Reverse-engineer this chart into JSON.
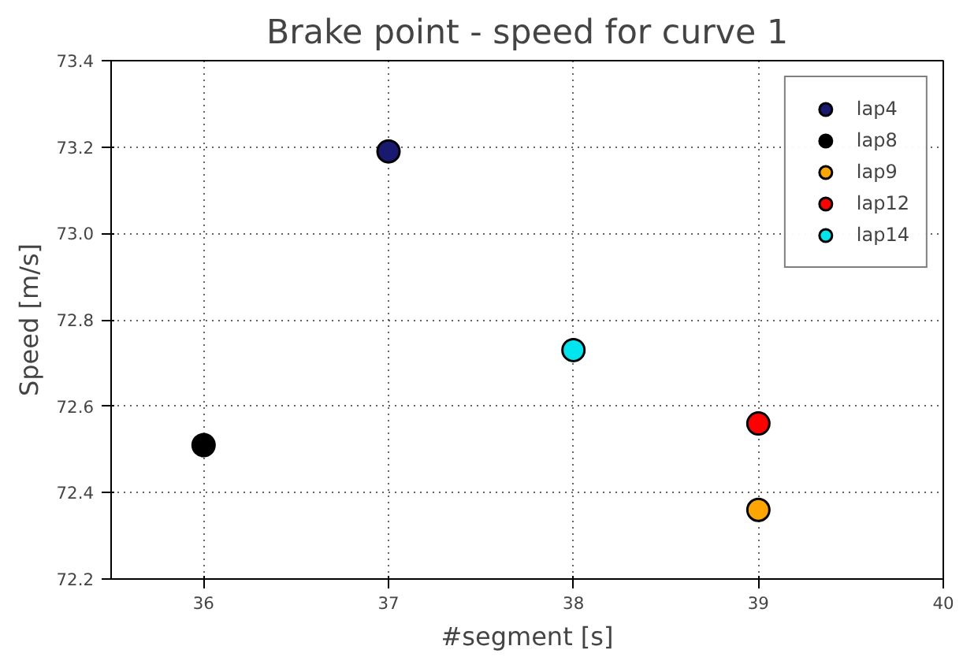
{
  "chart_data": {
    "type": "scatter",
    "title": "Brake point - speed for curve 1",
    "xlabel": "#segment [s]",
    "ylabel": "Speed [m/s]",
    "xlim": [
      35.5,
      40
    ],
    "xticks": [
      36,
      37,
      38,
      39,
      40
    ],
    "ylim": [
      72.2,
      73.4
    ],
    "yticks": [
      {
        "value": 72.2,
        "label": "72.2"
      },
      {
        "value": 72.4,
        "label": "72.4"
      },
      {
        "value": 72.6,
        "label": "72.6"
      },
      {
        "value": 72.8,
        "label": "72.8"
      },
      {
        "value": 73.0,
        "label": "73.0"
      },
      {
        "value": 73.2,
        "label": "73.2"
      },
      {
        "value": 73.4,
        "label": "73.4"
      }
    ],
    "grid": true,
    "legend": "top right",
    "marker": "circle",
    "series": [
      {
        "name": "lap4",
        "color": "#191970",
        "x": [
          37
        ],
        "values": [
          73.19
        ]
      },
      {
        "name": "lap8",
        "color": "#000000",
        "x": [
          36
        ],
        "values": [
          72.51
        ]
      },
      {
        "name": "lap9",
        "color": "#ffa500",
        "x": [
          39
        ],
        "values": [
          72.36
        ]
      },
      {
        "name": "lap12",
        "color": "#ff0000",
        "x": [
          39
        ],
        "values": [
          72.56
        ]
      },
      {
        "name": "lap14",
        "color": "#00e5ee",
        "x": [
          38
        ],
        "values": [
          72.73
        ]
      }
    ]
  }
}
